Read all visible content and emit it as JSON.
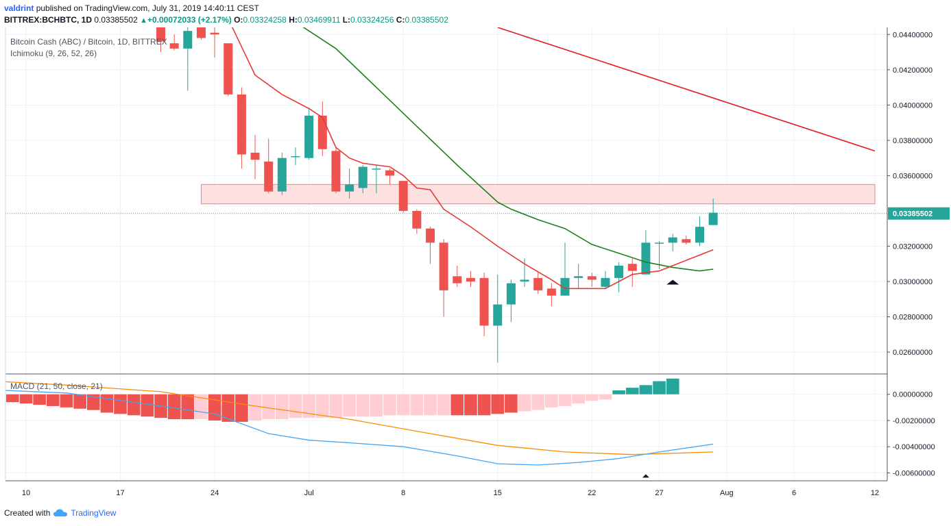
{
  "header": {
    "author": "valdrint",
    "published_text": "published on TradingView.com, July 31, 2019 14:40:11 CEST",
    "symbol": "BITTREX:BCHBTC, 1D",
    "last": "0.03385502",
    "change": "+0.00072033 (+2.17%)",
    "o_label": "O:",
    "o_value": "0.03324258",
    "h_label": "H:",
    "h_value": "0.03469911",
    "l_label": "L:",
    "l_value": "0.03324256",
    "c_label": "C:",
    "c_value": "0.03385502"
  },
  "legend": {
    "title": "Bitcoin Cash (ABC) / Bitcoin, 1D, BITTREX",
    "indicator": "Ichimoku (9, 26, 52, 26)",
    "macd": "MACD (21, 50, close, 21)"
  },
  "footer": {
    "created_with": "Created with",
    "brand": "TradingView"
  },
  "colors": {
    "up": "#26a69a",
    "down": "#ef5350",
    "tenkan": "#e53935",
    "kijun": "#1b7f1b",
    "trend": "#e61b1b",
    "zone_fill": "#fde0e0",
    "zone_stroke": "#f08080",
    "hist_strong_up": "#26a69a",
    "hist_strong_down": "#ef5350",
    "hist_weak_down": "#ffcdd2",
    "macd_line": "#42a5f5",
    "signal_line": "#fb8c00",
    "price_label_bg": "#26a69a"
  },
  "chart_data": [
    {
      "type": "candlestick",
      "title": "Bitcoin Cash (ABC) / Bitcoin, 1D, BITTREX",
      "x_tick_labels": [
        "10",
        "17",
        "24",
        "Jul",
        "8",
        "15",
        "22",
        "27",
        "Aug",
        "6",
        "12"
      ],
      "y_tick_labels": [
        "0.04400000",
        "0.04200000",
        "0.04000000",
        "0.03800000",
        "0.03600000",
        "0.03200000",
        "0.03000000",
        "0.02800000",
        "0.02600000"
      ],
      "ylim": [
        0.0248,
        0.0444
      ],
      "last_price_label": "0.03385502",
      "grid": true,
      "candles": [
        {
          "date": "2019-06-20",
          "o": 0.0444,
          "h": 0.0447,
          "l": 0.043,
          "c": 0.0436
        },
        {
          "date": "2019-06-21",
          "o": 0.0435,
          "h": 0.044,
          "l": 0.0431,
          "c": 0.0432
        },
        {
          "date": "2019-06-22",
          "o": 0.0432,
          "h": 0.0447,
          "l": 0.0408,
          "c": 0.0442
        },
        {
          "date": "2019-06-23",
          "o": 0.0444,
          "h": 0.0446,
          "l": 0.0437,
          "c": 0.0438
        },
        {
          "date": "2019-06-24",
          "o": 0.0441,
          "h": 0.0447,
          "l": 0.0427,
          "c": 0.044
        },
        {
          "date": "2019-06-25",
          "o": 0.0435,
          "h": 0.0435,
          "l": 0.0405,
          "c": 0.0406
        },
        {
          "date": "2019-06-26",
          "o": 0.0406,
          "h": 0.041,
          "l": 0.0364,
          "c": 0.0372
        },
        {
          "date": "2019-06-27",
          "o": 0.0373,
          "h": 0.0383,
          "l": 0.0358,
          "c": 0.0369
        },
        {
          "date": "2019-06-28",
          "o": 0.0368,
          "h": 0.0381,
          "l": 0.035,
          "c": 0.0351
        },
        {
          "date": "2019-06-29",
          "o": 0.0351,
          "h": 0.0373,
          "l": 0.0349,
          "c": 0.037
        },
        {
          "date": "2019-06-30",
          "o": 0.0371,
          "h": 0.0376,
          "l": 0.0366,
          "c": 0.0371
        },
        {
          "date": "2019-07-01",
          "o": 0.037,
          "h": 0.0398,
          "l": 0.0369,
          "c": 0.0394
        },
        {
          "date": "2019-07-02",
          "o": 0.0394,
          "h": 0.0402,
          "l": 0.0371,
          "c": 0.0375
        },
        {
          "date": "2019-07-03",
          "o": 0.0374,
          "h": 0.0376,
          "l": 0.035,
          "c": 0.0351
        },
        {
          "date": "2019-07-04",
          "o": 0.0351,
          "h": 0.0364,
          "l": 0.0347,
          "c": 0.0355
        },
        {
          "date": "2019-07-05",
          "o": 0.0353,
          "h": 0.0366,
          "l": 0.035,
          "c": 0.0365
        },
        {
          "date": "2019-07-06",
          "o": 0.0364,
          "h": 0.0366,
          "l": 0.035,
          "c": 0.0364
        },
        {
          "date": "2019-07-07",
          "o": 0.0363,
          "h": 0.0364,
          "l": 0.0355,
          "c": 0.036
        },
        {
          "date": "2019-07-08",
          "o": 0.0357,
          "h": 0.0357,
          "l": 0.0339,
          "c": 0.034
        },
        {
          "date": "2019-07-09",
          "o": 0.034,
          "h": 0.0341,
          "l": 0.0327,
          "c": 0.033
        },
        {
          "date": "2019-07-10",
          "o": 0.033,
          "h": 0.0331,
          "l": 0.031,
          "c": 0.0322
        },
        {
          "date": "2019-07-11",
          "o": 0.0322,
          "h": 0.0324,
          "l": 0.028,
          "c": 0.0295
        },
        {
          "date": "2019-07-12",
          "o": 0.0303,
          "h": 0.0309,
          "l": 0.0297,
          "c": 0.0299
        },
        {
          "date": "2019-07-13",
          "o": 0.0302,
          "h": 0.0306,
          "l": 0.0297,
          "c": 0.03
        },
        {
          "date": "2019-07-14",
          "o": 0.0302,
          "h": 0.0305,
          "l": 0.0269,
          "c": 0.0275
        },
        {
          "date": "2019-07-15",
          "o": 0.0275,
          "h": 0.0304,
          "l": 0.0254,
          "c": 0.0287
        },
        {
          "date": "2019-07-16",
          "o": 0.0287,
          "h": 0.0301,
          "l": 0.0277,
          "c": 0.0299
        },
        {
          "date": "2019-07-17",
          "o": 0.03,
          "h": 0.0313,
          "l": 0.0297,
          "c": 0.0301
        },
        {
          "date": "2019-07-18",
          "o": 0.0302,
          "h": 0.0305,
          "l": 0.0293,
          "c": 0.0295
        },
        {
          "date": "2019-07-19",
          "o": 0.0296,
          "h": 0.0299,
          "l": 0.0286,
          "c": 0.0292
        },
        {
          "date": "2019-07-20",
          "o": 0.0292,
          "h": 0.0322,
          "l": 0.0292,
          "c": 0.0302
        },
        {
          "date": "2019-07-21",
          "o": 0.0302,
          "h": 0.031,
          "l": 0.0296,
          "c": 0.0303
        },
        {
          "date": "2019-07-22",
          "o": 0.0303,
          "h": 0.0305,
          "l": 0.0297,
          "c": 0.0301
        },
        {
          "date": "2019-07-23",
          "o": 0.0297,
          "h": 0.0306,
          "l": 0.0296,
          "c": 0.0302
        },
        {
          "date": "2019-07-24",
          "o": 0.0302,
          "h": 0.0311,
          "l": 0.0294,
          "c": 0.0309
        },
        {
          "date": "2019-07-25",
          "o": 0.031,
          "h": 0.0313,
          "l": 0.0297,
          "c": 0.0306
        },
        {
          "date": "2019-07-26",
          "o": 0.0304,
          "h": 0.0329,
          "l": 0.0304,
          "c": 0.0322
        },
        {
          "date": "2019-07-27",
          "o": 0.0322,
          "h": 0.0323,
          "l": 0.0307,
          "c": 0.0322
        },
        {
          "date": "2019-07-28",
          "o": 0.0322,
          "h": 0.0327,
          "l": 0.0317,
          "c": 0.0325
        },
        {
          "date": "2019-07-29",
          "o": 0.0324,
          "h": 0.0326,
          "l": 0.0321,
          "c": 0.0322
        },
        {
          "date": "2019-07-30",
          "o": 0.0322,
          "h": 0.0337,
          "l": 0.032,
          "c": 0.0331
        },
        {
          "date": "2019-07-31",
          "o": 0.0332,
          "h": 0.0347,
          "l": 0.0332,
          "c": 0.0339
        }
      ],
      "tenkan": [
        {
          "date": "2019-06-25",
          "v": 0.0449
        },
        {
          "date": "2019-06-27",
          "v": 0.0417
        },
        {
          "date": "2019-06-29",
          "v": 0.0406
        },
        {
          "date": "2019-07-01",
          "v": 0.0398
        },
        {
          "date": "2019-07-02",
          "v": 0.0393
        },
        {
          "date": "2019-07-03",
          "v": 0.0376
        },
        {
          "date": "2019-07-04",
          "v": 0.037
        },
        {
          "date": "2019-07-05",
          "v": 0.0367
        },
        {
          "date": "2019-07-06",
          "v": 0.0366
        },
        {
          "date": "2019-07-07",
          "v": 0.0365
        },
        {
          "date": "2019-07-08",
          "v": 0.036
        },
        {
          "date": "2019-07-09",
          "v": 0.0353
        },
        {
          "date": "2019-07-10",
          "v": 0.0352
        },
        {
          "date": "2019-07-11",
          "v": 0.0341
        },
        {
          "date": "2019-07-13",
          "v": 0.0331
        },
        {
          "date": "2019-07-15",
          "v": 0.032
        },
        {
          "date": "2019-07-17",
          "v": 0.031
        },
        {
          "date": "2019-07-19",
          "v": 0.0301
        },
        {
          "date": "2019-07-20",
          "v": 0.0296
        },
        {
          "date": "2019-07-23",
          "v": 0.0296
        },
        {
          "date": "2019-07-24",
          "v": 0.03
        },
        {
          "date": "2019-07-25",
          "v": 0.0304
        },
        {
          "date": "2019-07-26",
          "v": 0.0305
        },
        {
          "date": "2019-07-27",
          "v": 0.0306
        },
        {
          "date": "2019-07-29",
          "v": 0.0312
        },
        {
          "date": "2019-07-31",
          "v": 0.0318
        }
      ],
      "kijun": [
        {
          "date": "2019-06-30",
          "v": 0.0447
        },
        {
          "date": "2019-07-03",
          "v": 0.0432
        },
        {
          "date": "2019-07-06",
          "v": 0.041
        },
        {
          "date": "2019-07-09",
          "v": 0.0388
        },
        {
          "date": "2019-07-12",
          "v": 0.0366
        },
        {
          "date": "2019-07-14",
          "v": 0.0352
        },
        {
          "date": "2019-07-15",
          "v": 0.0345
        },
        {
          "date": "2019-07-16",
          "v": 0.0341
        },
        {
          "date": "2019-07-18",
          "v": 0.0335
        },
        {
          "date": "2019-07-20",
          "v": 0.033
        },
        {
          "date": "2019-07-22",
          "v": 0.0321
        },
        {
          "date": "2019-07-24",
          "v": 0.0316
        },
        {
          "date": "2019-07-26",
          "v": 0.0311
        },
        {
          "date": "2019-07-28",
          "v": 0.0308
        },
        {
          "date": "2019-07-30",
          "v": 0.0306
        },
        {
          "date": "2019-07-31",
          "v": 0.0307
        }
      ],
      "trend_line": [
        {
          "date": "2019-07-15",
          "v": 0.0444
        },
        {
          "date": "2019-08-12",
          "v": 0.0374
        }
      ],
      "resistance_zone": {
        "from_date": "2019-06-23",
        "to_date": "2019-08-12",
        "low": 0.0344,
        "high": 0.0355
      },
      "marker": {
        "date": "2019-07-28",
        "v": 0.0301
      }
    },
    {
      "type": "histogram+line",
      "title": "MACD (21, 50, close, 21)",
      "y_tick_labels": [
        "0.00000000",
        "-0.00200000",
        "-0.00400000",
        "-0.00600000"
      ],
      "ylim": [
        -0.0066,
        0.0015
      ],
      "grid": true,
      "histogram_start_date": "2019-06-06",
      "histogram": [
        -0.0005,
        -0.0005,
        -0.0005,
        -0.0006,
        -0.0007,
        -0.0008,
        -0.0009,
        -0.001,
        -0.0011,
        -0.0012,
        -0.0014,
        -0.0015,
        -0.0016,
        -0.0017,
        -0.0018,
        -0.0019,
        -0.0019,
        -0.0019,
        -0.002,
        -0.0021,
        -0.0021,
        -0.002,
        -0.0019,
        -0.0019,
        -0.0018,
        -0.0018,
        -0.0018,
        -0.0018,
        -0.0017,
        -0.0017,
        -0.0017,
        -0.0016,
        -0.0016,
        -0.0016,
        -0.0016,
        -0.0016,
        -0.0016,
        -0.0016,
        -0.0016,
        -0.0015,
        -0.0014,
        -0.0013,
        -0.0012,
        -0.001,
        -0.0009,
        -0.0007,
        -0.0005,
        -0.0004,
        0.0003,
        0.0005,
        0.0007,
        0.001,
        0.0012
      ],
      "histogram_shading": [
        "down",
        "down",
        "down",
        "down",
        "down",
        "down",
        "down",
        "down",
        "down",
        "down",
        "down",
        "down",
        "down",
        "down",
        "down",
        "down",
        "down",
        "weak",
        "down",
        "down",
        "down",
        "weak",
        "weak",
        "weak",
        "weak",
        "weak",
        "weak",
        "weak",
        "weak",
        "weak",
        "weak",
        "weak",
        "weak",
        "weak",
        "weak",
        "weak",
        "down",
        "down",
        "down",
        "down",
        "down",
        "weak",
        "weak",
        "weak",
        "weak",
        "weak",
        "weak",
        "weak",
        "up",
        "up",
        "up",
        "up",
        "up"
      ],
      "histogram_shading_by_date": [
        {
          "date": "2019-06-07",
          "tone": "down"
        },
        {
          "date": "2019-06-14",
          "tone": "down"
        },
        {
          "date": "2019-06-21",
          "tone": "down"
        },
        {
          "date": "2019-06-23",
          "tone": "weak"
        },
        {
          "date": "2019-06-24",
          "tone": "down"
        },
        {
          "date": "2019-06-29",
          "tone": "weak"
        },
        {
          "date": "2019-07-03",
          "tone": "down"
        },
        {
          "date": "2019-07-04",
          "tone": "weak"
        },
        {
          "date": "2019-07-09",
          "tone": "down"
        },
        {
          "date": "2019-07-14",
          "tone": "down"
        },
        {
          "date": "2019-07-15",
          "tone": "weak"
        },
        {
          "date": "2019-07-26",
          "tone": "up"
        }
      ],
      "macd_line": [
        {
          "date": "2019-06-06",
          "v": 0.0004
        },
        {
          "date": "2019-06-13",
          "v": 0.0001
        },
        {
          "date": "2019-06-20",
          "v": -0.0009
        },
        {
          "date": "2019-06-24",
          "v": -0.0015
        },
        {
          "date": "2019-06-28",
          "v": -0.003
        },
        {
          "date": "2019-07-01",
          "v": -0.0035
        },
        {
          "date": "2019-07-04",
          "v": -0.0037
        },
        {
          "date": "2019-07-08",
          "v": -0.004
        },
        {
          "date": "2019-07-12",
          "v": -0.0047
        },
        {
          "date": "2019-07-15",
          "v": -0.0053
        },
        {
          "date": "2019-07-18",
          "v": -0.0054
        },
        {
          "date": "2019-07-21",
          "v": -0.0052
        },
        {
          "date": "2019-07-24",
          "v": -0.0049
        },
        {
          "date": "2019-07-27",
          "v": -0.0044
        },
        {
          "date": "2019-07-31",
          "v": -0.0038
        }
      ],
      "signal_line": [
        {
          "date": "2019-06-06",
          "v": 0.0011
        },
        {
          "date": "2019-06-13",
          "v": 0.0007
        },
        {
          "date": "2019-06-20",
          "v": 0.0002
        },
        {
          "date": "2019-06-27",
          "v": -0.0009
        },
        {
          "date": "2019-07-04",
          "v": -0.0019
        },
        {
          "date": "2019-07-10",
          "v": -0.003
        },
        {
          "date": "2019-07-15",
          "v": -0.0039
        },
        {
          "date": "2019-07-20",
          "v": -0.0044
        },
        {
          "date": "2019-07-25",
          "v": -0.0046
        },
        {
          "date": "2019-07-31",
          "v": -0.0044
        }
      ],
      "marker": {
        "date": "2019-07-26",
        "v": -0.0061
      }
    }
  ]
}
